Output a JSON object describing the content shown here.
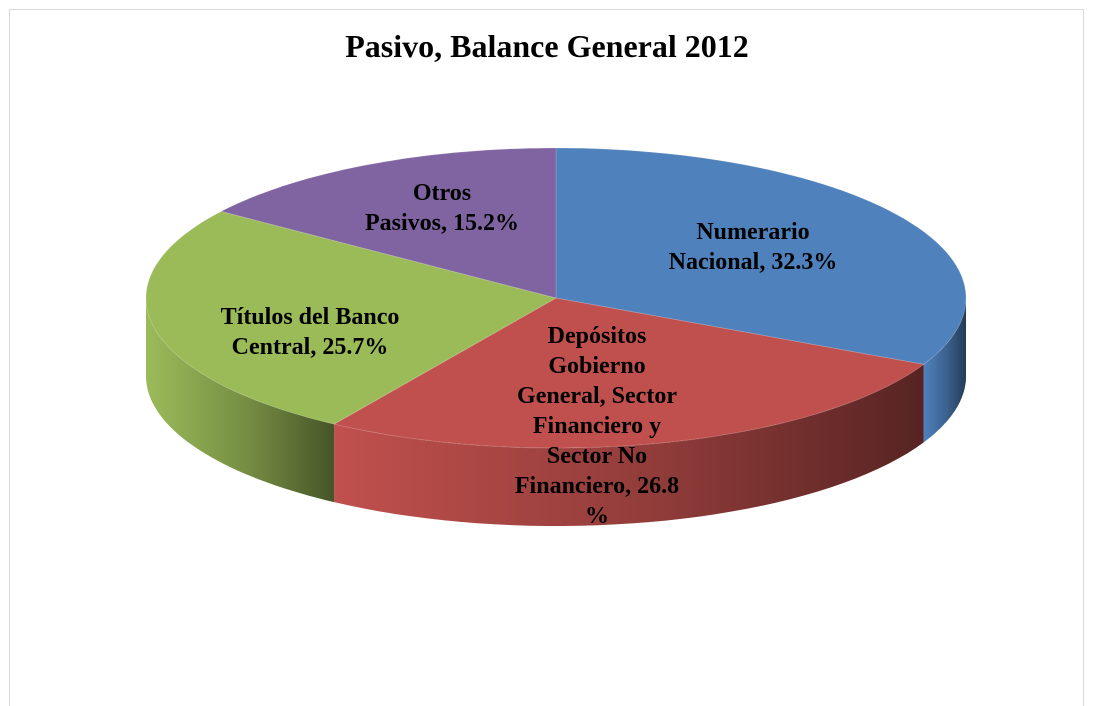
{
  "chart_data": {
    "type": "pie",
    "title": "Pasivo, Balance General 2012",
    "style": "3d",
    "slices": [
      {
        "label": "Numerario Nacional, 32.3%",
        "value": 32.3,
        "color": "#4f81bd"
      },
      {
        "label": "Depósitos Gobierno General, Sector Financiero y Sector No Financiero, 26.8 %",
        "value": 26.8,
        "color": "#c0504d"
      },
      {
        "label": "Títulos del Banco Central, 25.7%",
        "value": 25.7,
        "color": "#9bbb59"
      },
      {
        "label": "Otros Pasivos, 15.2%",
        "value": 15.2,
        "color": "#8064a2"
      }
    ],
    "label_lines": [
      [
        "Numerario",
        "Nacional, 32.3%"
      ],
      [
        "Depósitos",
        "Gobierno",
        "General, Sector",
        "Financiero y",
        "Sector No",
        "Financiero, 26.8",
        "%"
      ],
      [
        "Títulos del Banco",
        "Central, 25.7%"
      ],
      [
        "Otros",
        "Pasivos, 15.2%"
      ]
    ]
  }
}
